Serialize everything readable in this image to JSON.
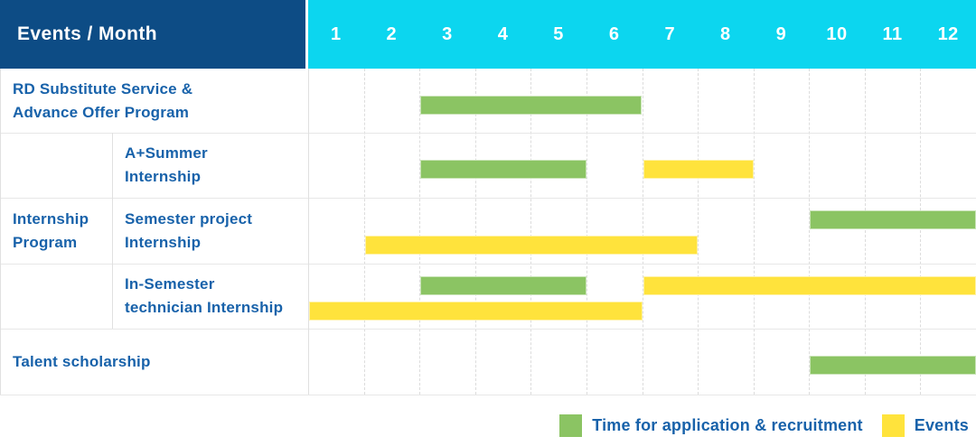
{
  "colors": {
    "header_navy": "#0d4c85",
    "header_cyan": "#0cd6ef",
    "label_text_blue": "#1862aa",
    "recruitment_green": "#8bc463",
    "event_yellow": "#ffe33c"
  },
  "chart_data": {
    "type": "table",
    "subtype": "gantt-timeline",
    "title": "Events / Month",
    "months": [
      "1",
      "2",
      "3",
      "4",
      "5",
      "6",
      "7",
      "8",
      "9",
      "10",
      "11",
      "12"
    ],
    "x_range": [
      1,
      12
    ],
    "grid": true,
    "legend_position": "bottom-right",
    "legend": [
      {
        "key": "recruitment",
        "label": "Time for application & recruitment",
        "color": "#8bc463"
      },
      {
        "key": "event",
        "label": "Events",
        "color": "#ffe33c"
      }
    ],
    "group": {
      "label": "Internship\nProgram",
      "spans_rows": [
        2,
        3,
        4
      ]
    },
    "rows": [
      {
        "label": "RD Substitute Service &\nAdvance Offer Program",
        "in_group": false,
        "bars": [
          {
            "kind": "recruitment",
            "start_month": 3,
            "end_month": 6,
            "level": "mid"
          }
        ]
      },
      {
        "label": "A+Summer\nInternship",
        "in_group": true,
        "bars": [
          {
            "kind": "recruitment",
            "start_month": 3,
            "end_month": 5,
            "level": "mid"
          },
          {
            "kind": "event",
            "start_month": 7,
            "end_month": 8,
            "level": "mid"
          }
        ]
      },
      {
        "label": "Semester project\nInternship",
        "in_group": true,
        "bars": [
          {
            "kind": "recruitment",
            "start_month": 10,
            "end_month": 12,
            "level": "upper"
          },
          {
            "kind": "event",
            "start_month": 2,
            "end_month": 7,
            "level": "lower"
          }
        ]
      },
      {
        "label": "In-Semester\ntechnician Internship",
        "in_group": true,
        "bars": [
          {
            "kind": "recruitment",
            "start_month": 3,
            "end_month": 5,
            "level": "upper"
          },
          {
            "kind": "event",
            "start_month": 7,
            "end_month": 12,
            "level": "upper"
          },
          {
            "kind": "event",
            "start_month": 1,
            "end_month": 6,
            "level": "lower"
          }
        ]
      },
      {
        "label": "Talent scholarship",
        "in_group": false,
        "bars": [
          {
            "kind": "recruitment",
            "start_month": 10,
            "end_month": 12,
            "level": "mid"
          }
        ]
      }
    ]
  }
}
